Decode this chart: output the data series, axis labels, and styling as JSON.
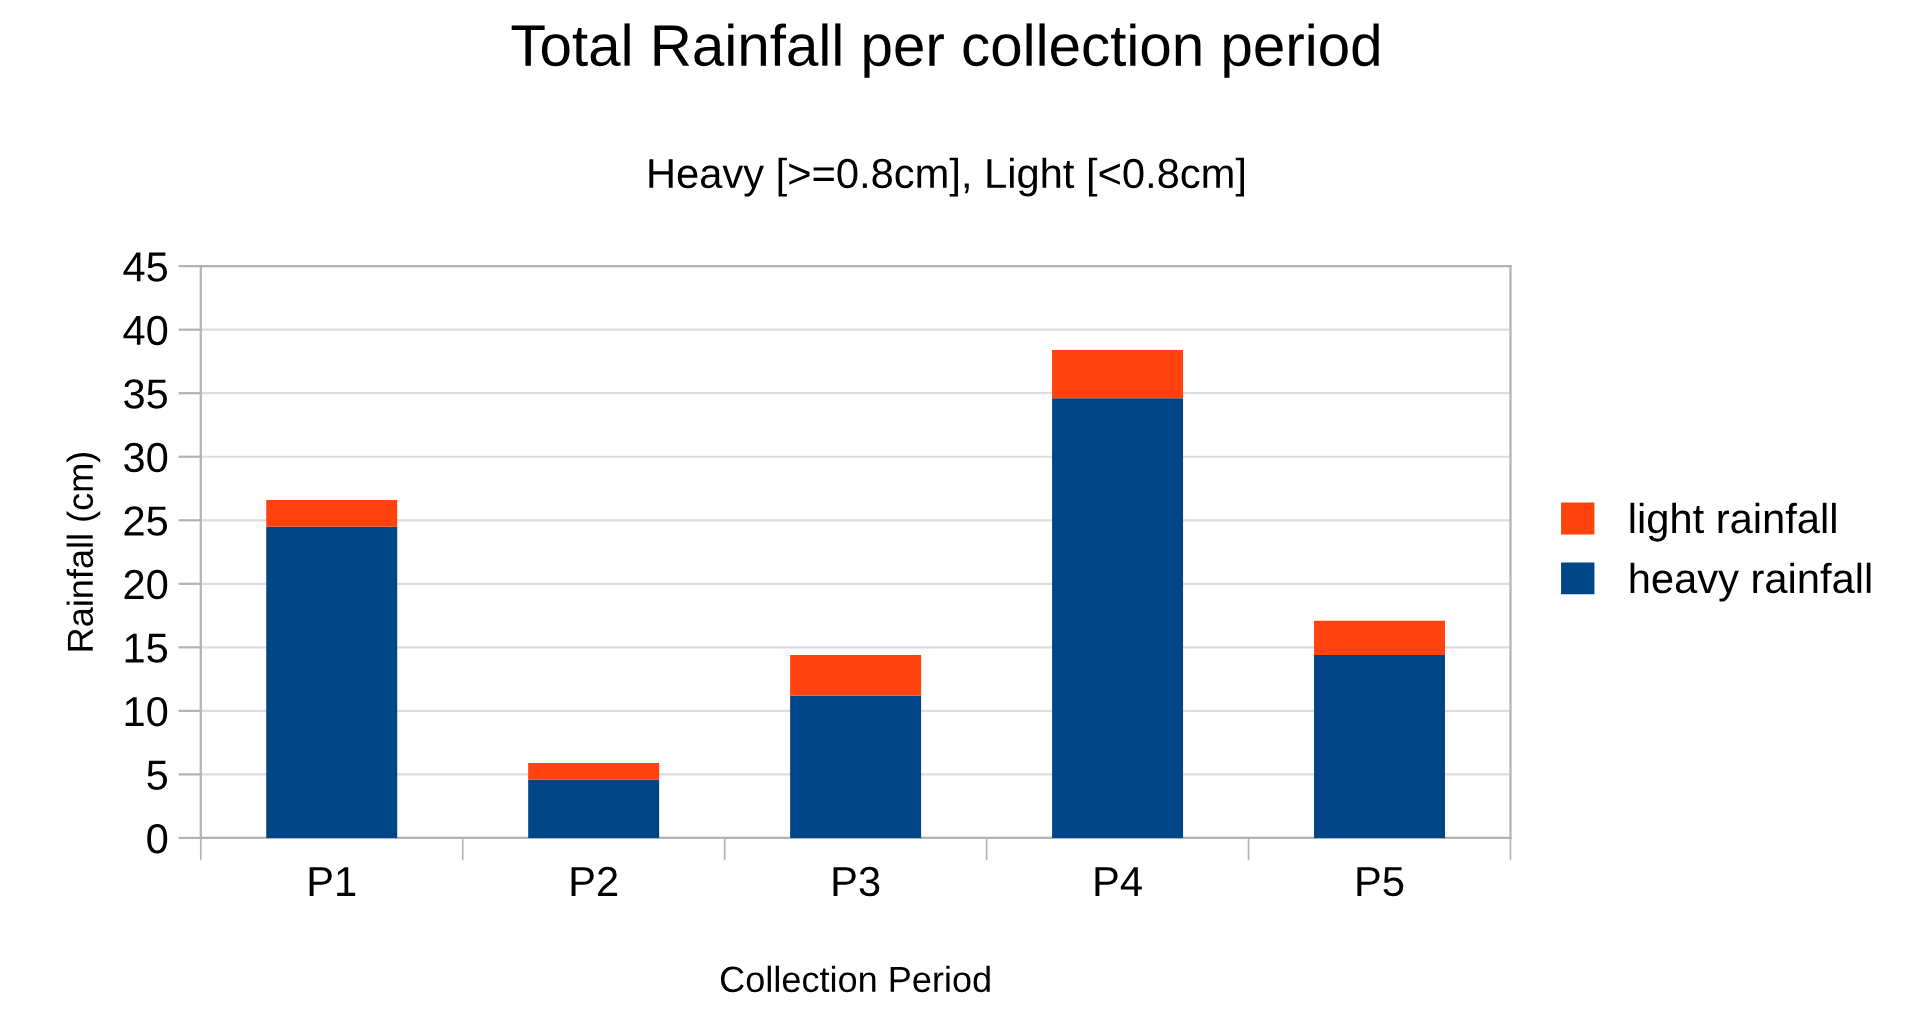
{
  "chart_data": {
    "type": "bar",
    "title": "Total Rainfall per collection period",
    "subtitle": "Heavy [>=0.8cm], Light [<0.8cm]",
    "xlabel": "Collection Period",
    "ylabel": "Rainfall (cm)",
    "categories": [
      "P1",
      "P2",
      "P3",
      "P4",
      "P5"
    ],
    "series": [
      {
        "name": "heavy rainfall",
        "color": "#004586",
        "values": [
          24.5,
          4.6,
          11.2,
          34.6,
          14.4
        ]
      },
      {
        "name": "light rainfall",
        "color": "#ff420e",
        "values": [
          2.1,
          1.3,
          3.2,
          3.8,
          2.7
        ]
      }
    ],
    "stacked": true,
    "ylim": [
      0,
      45
    ],
    "yticks": [
      0,
      5,
      10,
      15,
      20,
      25,
      30,
      35,
      40,
      45
    ],
    "grid": "y",
    "legend": "right"
  }
}
